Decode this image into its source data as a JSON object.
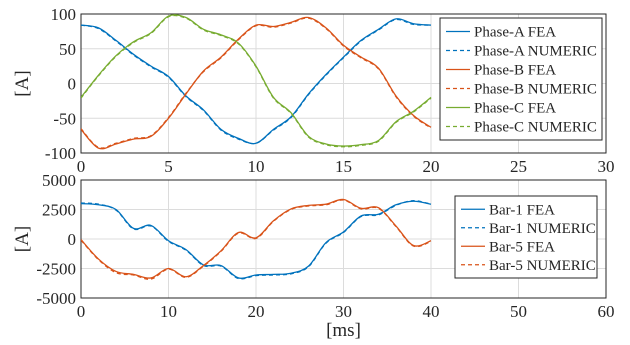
{
  "chart_data": [
    {
      "type": "line",
      "ylabel": "[A]",
      "xlabel": "",
      "xlim": [
        0,
        30
      ],
      "ylim": [
        -100,
        100
      ],
      "xticks": [
        "0",
        "5",
        "10",
        "15",
        "20",
        "25",
        "30"
      ],
      "yticks": [
        "100",
        "50",
        "0",
        "-50",
        "-100"
      ],
      "grid": true,
      "legend_position": "right",
      "series": [
        {
          "name": "Phase-A FEA",
          "color": "#0072BD",
          "style": "solid",
          "x": [
            0,
            1,
            2,
            3,
            4,
            5,
            6,
            7,
            8,
            9,
            10,
            11,
            12,
            13,
            14,
            15,
            16,
            17,
            18,
            19,
            20
          ],
          "y": [
            84,
            80,
            62,
            42,
            25,
            10,
            -18,
            -38,
            -66,
            -79,
            -86,
            -66,
            -48,
            -15,
            13,
            38,
            62,
            78,
            93,
            86,
            84
          ]
        },
        {
          "name": "Phase-A NUMERIC",
          "color": "#0072BD",
          "style": "dashed",
          "x": [
            0,
            1,
            2,
            3,
            4,
            5,
            6,
            7,
            8,
            9,
            10,
            11,
            12,
            13,
            14,
            15,
            16,
            17,
            18,
            19,
            20
          ],
          "y": [
            84,
            79,
            61,
            41,
            24,
            9,
            -19,
            -39,
            -67,
            -80,
            -86,
            -67,
            -49,
            -16,
            12,
            37,
            61,
            77,
            92,
            85,
            84
          ]
        },
        {
          "name": "Phase-B FEA",
          "color": "#D95319",
          "style": "solid",
          "x": [
            0,
            1,
            2,
            3,
            4,
            5,
            6,
            7,
            8,
            9,
            10,
            11,
            12,
            13,
            14,
            15,
            16,
            17,
            18,
            19,
            20
          ],
          "y": [
            -66,
            -93,
            -87,
            -80,
            -76,
            -50,
            -15,
            18,
            38,
            64,
            84,
            82,
            88,
            95,
            80,
            55,
            38,
            22,
            -18,
            -46,
            -63
          ]
        },
        {
          "name": "Phase-B NUMERIC",
          "color": "#D95319",
          "style": "dashed",
          "x": [
            0,
            1,
            2,
            3,
            4,
            5,
            6,
            7,
            8,
            9,
            10,
            11,
            12,
            13,
            14,
            15,
            16,
            17,
            18,
            19,
            20
          ],
          "y": [
            -65,
            -92,
            -86,
            -79,
            -75,
            -49,
            -14,
            17,
            37,
            63,
            83,
            81,
            87,
            94,
            79,
            54,
            37,
            21,
            -19,
            -47,
            -64
          ]
        },
        {
          "name": "Phase-C FEA",
          "color": "#77AC30",
          "style": "solid",
          "x": [
            0,
            1,
            2,
            3,
            4,
            5,
            6,
            7,
            8,
            9,
            10,
            11,
            12,
            13,
            14,
            15,
            16,
            17,
            18,
            19,
            20
          ],
          "y": [
            -20,
            12,
            40,
            60,
            73,
            97,
            95,
            78,
            70,
            58,
            25,
            -20,
            -42,
            -76,
            -87,
            -90,
            -88,
            -82,
            -55,
            -40,
            -20
          ]
        },
        {
          "name": "Phase-C NUMERIC",
          "color": "#77AC30",
          "style": "dashed",
          "x": [
            0,
            1,
            2,
            3,
            4,
            5,
            6,
            7,
            8,
            9,
            10,
            11,
            12,
            13,
            14,
            15,
            16,
            17,
            18,
            19,
            20
          ],
          "y": [
            -21,
            11,
            39,
            59,
            72,
            96,
            94,
            77,
            69,
            57,
            24,
            -21,
            -43,
            -77,
            -88,
            -91,
            -89,
            -83,
            -56,
            -41,
            -21
          ]
        }
      ]
    },
    {
      "type": "line",
      "ylabel": "[A]",
      "xlabel": "[ms]",
      "xlim": [
        0,
        60
      ],
      "ylim": [
        -5000,
        5000
      ],
      "xticks": [
        "0",
        "10",
        "20",
        "30",
        "40",
        "50",
        "60"
      ],
      "yticks": [
        "5000",
        "2500",
        "0",
        "-2500",
        "-5000"
      ],
      "grid": true,
      "legend_position": "right",
      "series": [
        {
          "name": "Bar-1 FEA",
          "color": "#0072BD",
          "style": "solid",
          "x": [
            0,
            2,
            4,
            6,
            8,
            10,
            12,
            14,
            16,
            18,
            20,
            22,
            24,
            26,
            28,
            30,
            32,
            34,
            36,
            38,
            40
          ],
          "y": [
            3000,
            2900,
            2500,
            900,
            1150,
            -150,
            -900,
            -2200,
            -2250,
            -3300,
            -3050,
            -3000,
            -2900,
            -2300,
            -300,
            600,
            1950,
            2100,
            2900,
            3200,
            2950
          ]
        },
        {
          "name": "Bar-1 NUMERIC",
          "color": "#0072BD",
          "style": "dashed",
          "x": [
            0,
            2,
            4,
            6,
            8,
            10,
            12,
            14,
            16,
            18,
            20,
            22,
            24,
            26,
            28,
            30,
            32,
            34,
            36,
            38,
            40
          ],
          "y": [
            3050,
            2950,
            2450,
            850,
            1100,
            -200,
            -950,
            -2250,
            -2300,
            -3350,
            -3100,
            -3050,
            -2950,
            -2350,
            -350,
            550,
            1900,
            2050,
            2850,
            3250,
            2950
          ]
        },
        {
          "name": "Bar-5 FEA",
          "color": "#D95319",
          "style": "solid",
          "x": [
            0,
            2,
            4,
            6,
            8,
            10,
            12,
            14,
            16,
            18,
            20,
            22,
            24,
            26,
            28,
            30,
            32,
            34,
            36,
            38,
            40
          ],
          "y": [
            -50,
            -1700,
            -2750,
            -3000,
            -3300,
            -2500,
            -3200,
            -2250,
            -1000,
            550,
            100,
            1550,
            2550,
            2850,
            2950,
            3350,
            2600,
            2650,
            1100,
            -550,
            -150
          ]
        },
        {
          "name": "Bar-5 NUMERIC",
          "color": "#D95319",
          "style": "dashed",
          "x": [
            0,
            2,
            4,
            6,
            8,
            10,
            12,
            14,
            16,
            18,
            20,
            22,
            24,
            26,
            28,
            30,
            32,
            34,
            36,
            38,
            40
          ],
          "y": [
            -100,
            -1750,
            -2850,
            -3050,
            -3400,
            -2550,
            -3250,
            -2300,
            -1050,
            500,
            50,
            1500,
            2500,
            2800,
            2900,
            3300,
            2550,
            2600,
            1050,
            -600,
            -200
          ]
        }
      ]
    }
  ]
}
